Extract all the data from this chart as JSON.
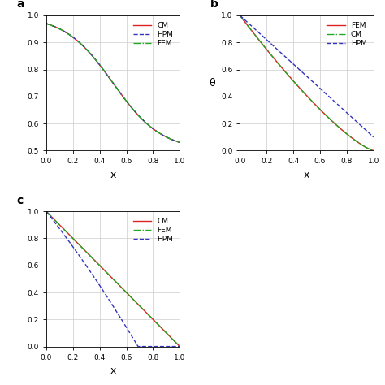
{
  "panel_a": {
    "label": "a",
    "xlabel": "x",
    "ylabel": "",
    "xlim": [
      0,
      1
    ],
    "ylim": [
      0.5,
      1.0
    ],
    "yticks": [
      0.5,
      0.6,
      0.7,
      0.8,
      0.9,
      1.0
    ],
    "xticks": [
      0.0,
      0.2,
      0.4,
      0.6,
      0.8,
      1.0
    ],
    "lines": [
      {
        "label": "CM",
        "color": "#dd2222",
        "ls": "-",
        "lw": 1.0
      },
      {
        "label": "HPM",
        "color": "#3333bb",
        "ls": "--",
        "lw": 1.0
      },
      {
        "label": "FEM",
        "color": "#22aa22",
        "ls": "-.",
        "lw": 1.0
      }
    ]
  },
  "panel_b": {
    "label": "b",
    "xlabel": "x",
    "ylabel": "θ",
    "xlim": [
      0,
      1
    ],
    "ylim": [
      0.0,
      1.0
    ],
    "yticks": [
      0.0,
      0.2,
      0.4,
      0.6,
      0.8,
      1.0
    ],
    "xticks": [
      0.0,
      0.2,
      0.4,
      0.6,
      0.8,
      1.0
    ],
    "lines": [
      {
        "label": "FEM",
        "color": "#dd2222",
        "ls": "-",
        "lw": 1.0
      },
      {
        "label": "CM",
        "color": "#22aa22",
        "ls": "-.",
        "lw": 1.0
      },
      {
        "label": "HPM",
        "color": "#3333bb",
        "ls": "--",
        "lw": 1.0
      }
    ]
  },
  "panel_c": {
    "label": "c",
    "xlabel": "x",
    "ylabel": "",
    "xlim": [
      0,
      1
    ],
    "ylim": [
      0.0,
      1.0
    ],
    "yticks": [
      0.0,
      0.2,
      0.4,
      0.6,
      0.8,
      1.0
    ],
    "xticks": [
      0.0,
      0.2,
      0.4,
      0.6,
      0.8,
      1.0
    ],
    "lines": [
      {
        "label": "CM",
        "color": "#dd2222",
        "ls": "-",
        "lw": 1.0
      },
      {
        "label": "FEM",
        "color": "#22aa22",
        "ls": "-.",
        "lw": 1.0
      },
      {
        "label": "HPM",
        "color": "#3333bb",
        "ls": "--",
        "lw": 1.0
      }
    ]
  },
  "figsize": [
    4.74,
    4.74
  ],
  "dpi": 100,
  "tick_fontsize": 6.5,
  "legend_fontsize": 6.5,
  "label_fontsize": 9,
  "grid_color": "#cccccc",
  "grid_lw": 0.5,
  "wspace": 0.45,
  "hspace": 0.45
}
